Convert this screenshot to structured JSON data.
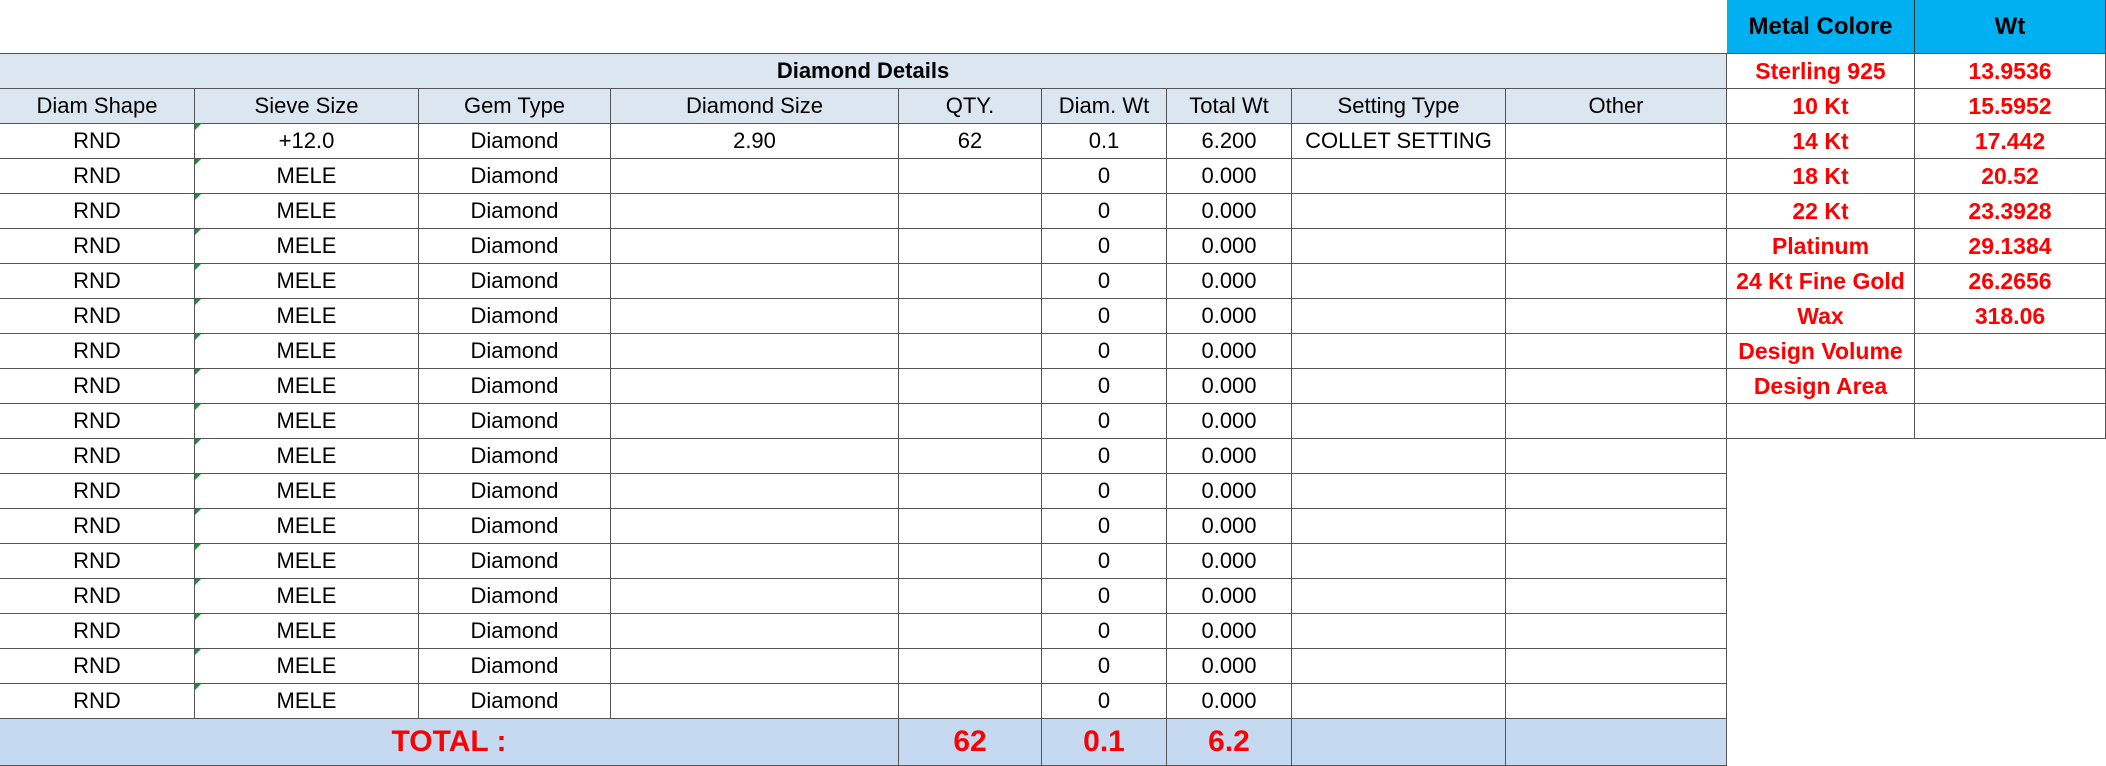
{
  "diamond_table": {
    "title": "Diamond Details",
    "headers": {
      "shape": "Diam Shape",
      "sieve": "Sieve Size",
      "gem": "Gem Type",
      "size": "Diamond Size",
      "qty": "QTY.",
      "diam_wt": "Diam. Wt",
      "total_wt": "Total Wt",
      "setting": "Setting Type",
      "other": "Other"
    },
    "rows": [
      {
        "shape": "RND",
        "sieve": "+12.0",
        "gem": "Diamond",
        "size": "2.90",
        "qty": "62",
        "diam_wt": "0.1",
        "total_wt": "6.200",
        "setting": "COLLET SETTING"
      },
      {
        "shape": "RND",
        "sieve": "MELE",
        "gem": "Diamond",
        "diam_wt": "0",
        "total_wt": "0.000"
      },
      {
        "shape": "RND",
        "sieve": "MELE",
        "gem": "Diamond",
        "diam_wt": "0",
        "total_wt": "0.000"
      },
      {
        "shape": "RND",
        "sieve": "MELE",
        "gem": "Diamond",
        "diam_wt": "0",
        "total_wt": "0.000"
      },
      {
        "shape": "RND",
        "sieve": "MELE",
        "gem": "Diamond",
        "diam_wt": "0",
        "total_wt": "0.000"
      },
      {
        "shape": "RND",
        "sieve": "MELE",
        "gem": "Diamond",
        "diam_wt": "0",
        "total_wt": "0.000"
      },
      {
        "shape": "RND",
        "sieve": "MELE",
        "gem": "Diamond",
        "diam_wt": "0",
        "total_wt": "0.000"
      },
      {
        "shape": "RND",
        "sieve": "MELE",
        "gem": "Diamond",
        "diam_wt": "0",
        "total_wt": "0.000"
      },
      {
        "shape": "RND",
        "sieve": "MELE",
        "gem": "Diamond",
        "diam_wt": "0",
        "total_wt": "0.000"
      },
      {
        "shape": "RND",
        "sieve": "MELE",
        "gem": "Diamond",
        "diam_wt": "0",
        "total_wt": "0.000"
      },
      {
        "shape": "RND",
        "sieve": "MELE",
        "gem": "Diamond",
        "diam_wt": "0",
        "total_wt": "0.000"
      },
      {
        "shape": "RND",
        "sieve": "MELE",
        "gem": "Diamond",
        "diam_wt": "0",
        "total_wt": "0.000"
      },
      {
        "shape": "RND",
        "sieve": "MELE",
        "gem": "Diamond",
        "diam_wt": "0",
        "total_wt": "0.000"
      },
      {
        "shape": "RND",
        "sieve": "MELE",
        "gem": "Diamond",
        "diam_wt": "0",
        "total_wt": "0.000"
      },
      {
        "shape": "RND",
        "sieve": "MELE",
        "gem": "Diamond",
        "diam_wt": "0",
        "total_wt": "0.000"
      },
      {
        "shape": "RND",
        "sieve": "MELE",
        "gem": "Diamond",
        "diam_wt": "0",
        "total_wt": "0.000"
      },
      {
        "shape": "RND",
        "sieve": "MELE",
        "gem": "Diamond",
        "diam_wt": "0",
        "total_wt": "0.000"
      }
    ],
    "totals": {
      "label": "TOTAL :",
      "qty": "62",
      "diam_wt": "0.1",
      "total_wt": "6.2"
    }
  },
  "metal_table": {
    "headers": {
      "metal": "Metal Colore",
      "wt": "Wt"
    },
    "rows": [
      {
        "metal": "Sterling 925",
        "wt": "13.9536"
      },
      {
        "metal": "10 Kt",
        "wt": "15.5952"
      },
      {
        "metal": "14 Kt",
        "wt": "17.442"
      },
      {
        "metal": "18 Kt",
        "wt": "20.52"
      },
      {
        "metal": "22 Kt",
        "wt": "23.3928"
      },
      {
        "metal": "Platinum",
        "wt": "29.1384"
      },
      {
        "metal": "24 Kt Fine Gold",
        "wt": "26.2656"
      },
      {
        "metal": "Wax",
        "wt": "318.06"
      },
      {
        "metal": "Design Volume"
      },
      {
        "metal": "Design Area"
      }
    ]
  }
}
